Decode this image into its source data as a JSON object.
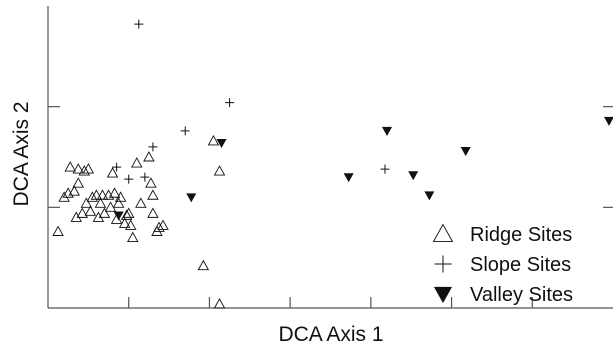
{
  "chart_data": {
    "type": "scatter",
    "xlabel": "DCA Axis 1",
    "ylabel": "DCA Axis 2",
    "xlim": [
      0,
      280
    ],
    "ylim": [
      0,
      150
    ],
    "grid": false,
    "legend_position": "bottom-right",
    "colors": {
      "axis": "#555555",
      "marker": "#111111"
    },
    "series": [
      {
        "name": "Ridge Sites",
        "marker": "open-triangle",
        "points": [
          [
            5,
            38
          ],
          [
            8,
            55
          ],
          [
            10,
            57
          ],
          [
            11,
            70
          ],
          [
            13,
            58
          ],
          [
            14,
            45
          ],
          [
            15,
            62
          ],
          [
            15,
            69
          ],
          [
            17,
            47
          ],
          [
            18,
            68
          ],
          [
            19,
            52
          ],
          [
            20,
            69
          ],
          [
            21,
            48
          ],
          [
            22,
            55
          ],
          [
            24,
            56
          ],
          [
            25,
            45
          ],
          [
            26,
            52
          ],
          [
            27,
            56
          ],
          [
            28,
            47
          ],
          [
            30,
            56
          ],
          [
            31,
            50
          ],
          [
            32,
            67
          ],
          [
            33,
            57
          ],
          [
            34,
            44
          ],
          [
            35,
            52
          ],
          [
            36,
            55
          ],
          [
            38,
            42
          ],
          [
            39,
            46
          ],
          [
            40,
            47
          ],
          [
            41,
            41
          ],
          [
            42,
            35
          ],
          [
            44,
            72
          ],
          [
            46,
            52
          ],
          [
            50,
            75
          ],
          [
            51,
            62
          ],
          [
            52,
            56
          ],
          [
            52,
            47
          ],
          [
            54,
            38
          ],
          [
            55,
            40
          ],
          [
            57,
            41
          ],
          [
            77,
            21
          ],
          [
            82,
            83
          ],
          [
            85,
            68
          ],
          [
            85,
            2
          ]
        ]
      },
      {
        "name": "Slope Sites",
        "marker": "plus",
        "points": [
          [
            34,
            70
          ],
          [
            40,
            64
          ],
          [
            45,
            141
          ],
          [
            48,
            65
          ],
          [
            52,
            80
          ],
          [
            68,
            88
          ],
          [
            90,
            102
          ],
          [
            167,
            69
          ]
        ]
      },
      {
        "name": "Valley Sites",
        "marker": "filled-down-triangle",
        "points": [
          [
            35,
            46
          ],
          [
            71,
            55
          ],
          [
            86,
            82
          ],
          [
            149,
            65
          ],
          [
            168,
            88
          ],
          [
            181,
            66
          ],
          [
            189,
            56
          ],
          [
            207,
            78
          ],
          [
            281,
            93
          ]
        ]
      }
    ]
  }
}
